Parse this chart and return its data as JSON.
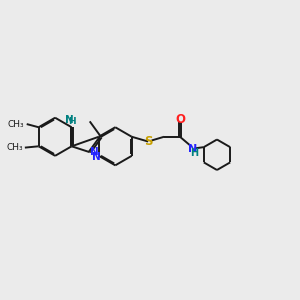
{
  "bg_color": "#ebebeb",
  "bond_color": "#1a1a1a",
  "N_color": "#2323ff",
  "S_color": "#c8a000",
  "O_color": "#ff2020",
  "NH_color": "#008080",
  "line_width": 1.4,
  "dbo": 0.055,
  "r6": 0.72,
  "r5": 0.6,
  "xlim": [
    0,
    11
  ],
  "ylim": [
    0,
    10
  ],
  "figsize": [
    3.0,
    3.0
  ],
  "dpi": 100
}
